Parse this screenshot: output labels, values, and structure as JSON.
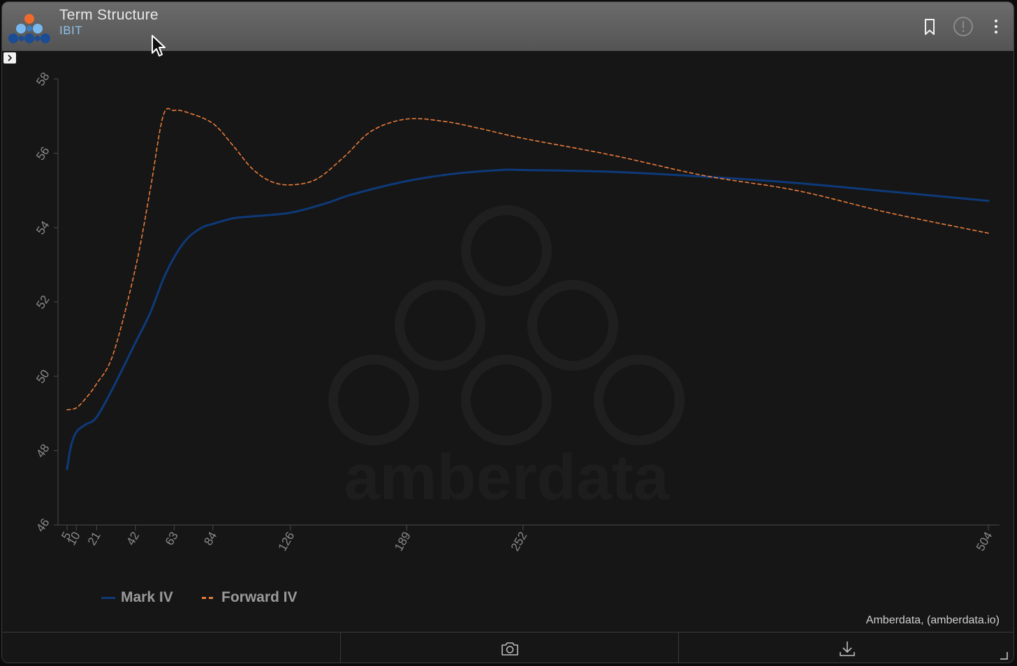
{
  "header": {
    "title": "Term Structure",
    "subtitle": "IBIT",
    "icons": [
      "bookmark-icon",
      "alert-circle-icon",
      "more-vertical-icon"
    ]
  },
  "credit": "Amberdata, (amberdata.io)",
  "watermark": "amberdata",
  "colors": {
    "mark_iv": "#0e3a7a",
    "forward_iv": "#e87c3a",
    "axis": "#8a8a8a",
    "background": "#161616"
  },
  "footer": {
    "icons": [
      "camera-icon",
      "download-icon"
    ]
  },
  "chart_data": {
    "type": "line",
    "title": "",
    "xlabel": "",
    "ylabel": "",
    "x_scale": "linear",
    "xlim": [
      0,
      508
    ],
    "ylim": [
      46,
      58
    ],
    "x_ticks": [
      "5",
      "10",
      "21",
      "42",
      "63",
      "84",
      "126",
      "189",
      "252",
      "504"
    ],
    "y_ticks": [
      "46",
      "48",
      "50",
      "52",
      "54",
      "56",
      "58"
    ],
    "grid": false,
    "legend_position": "bottom-left",
    "series": [
      {
        "name": "Mark IV",
        "style": "solid",
        "color": "#0e3a7a",
        "x": [
          5,
          7,
          10,
          15,
          21,
          30,
          42,
          50,
          57,
          63,
          70,
          78,
          84,
          95,
          105,
          126,
          145,
          160,
          189,
          215,
          240,
          252,
          300,
          350,
          400,
          450,
          504
        ],
        "y": [
          47.5,
          48.1,
          48.5,
          48.7,
          48.9,
          49.7,
          50.9,
          51.7,
          52.6,
          53.2,
          53.7,
          54.0,
          54.1,
          54.25,
          54.3,
          54.4,
          54.65,
          54.9,
          55.25,
          55.45,
          55.55,
          55.55,
          55.5,
          55.37,
          55.2,
          54.97,
          54.72
        ]
      },
      {
        "name": "Forward IV",
        "style": "dashed",
        "color": "#e87c3a",
        "x": [
          5,
          10,
          15,
          21,
          30,
          42,
          50,
          57,
          63,
          70,
          84,
          95,
          105,
          115,
          126,
          140,
          155,
          170,
          189,
          210,
          230,
          252,
          300,
          350,
          400,
          450,
          504
        ],
        "y": [
          49.1,
          49.15,
          49.4,
          49.8,
          50.6,
          52.9,
          55.0,
          57.0,
          57.15,
          57.1,
          56.8,
          56.2,
          55.6,
          55.25,
          55.15,
          55.3,
          55.9,
          56.6,
          56.92,
          56.85,
          56.65,
          56.4,
          55.95,
          55.4,
          55.0,
          54.4,
          53.85
        ]
      }
    ]
  }
}
